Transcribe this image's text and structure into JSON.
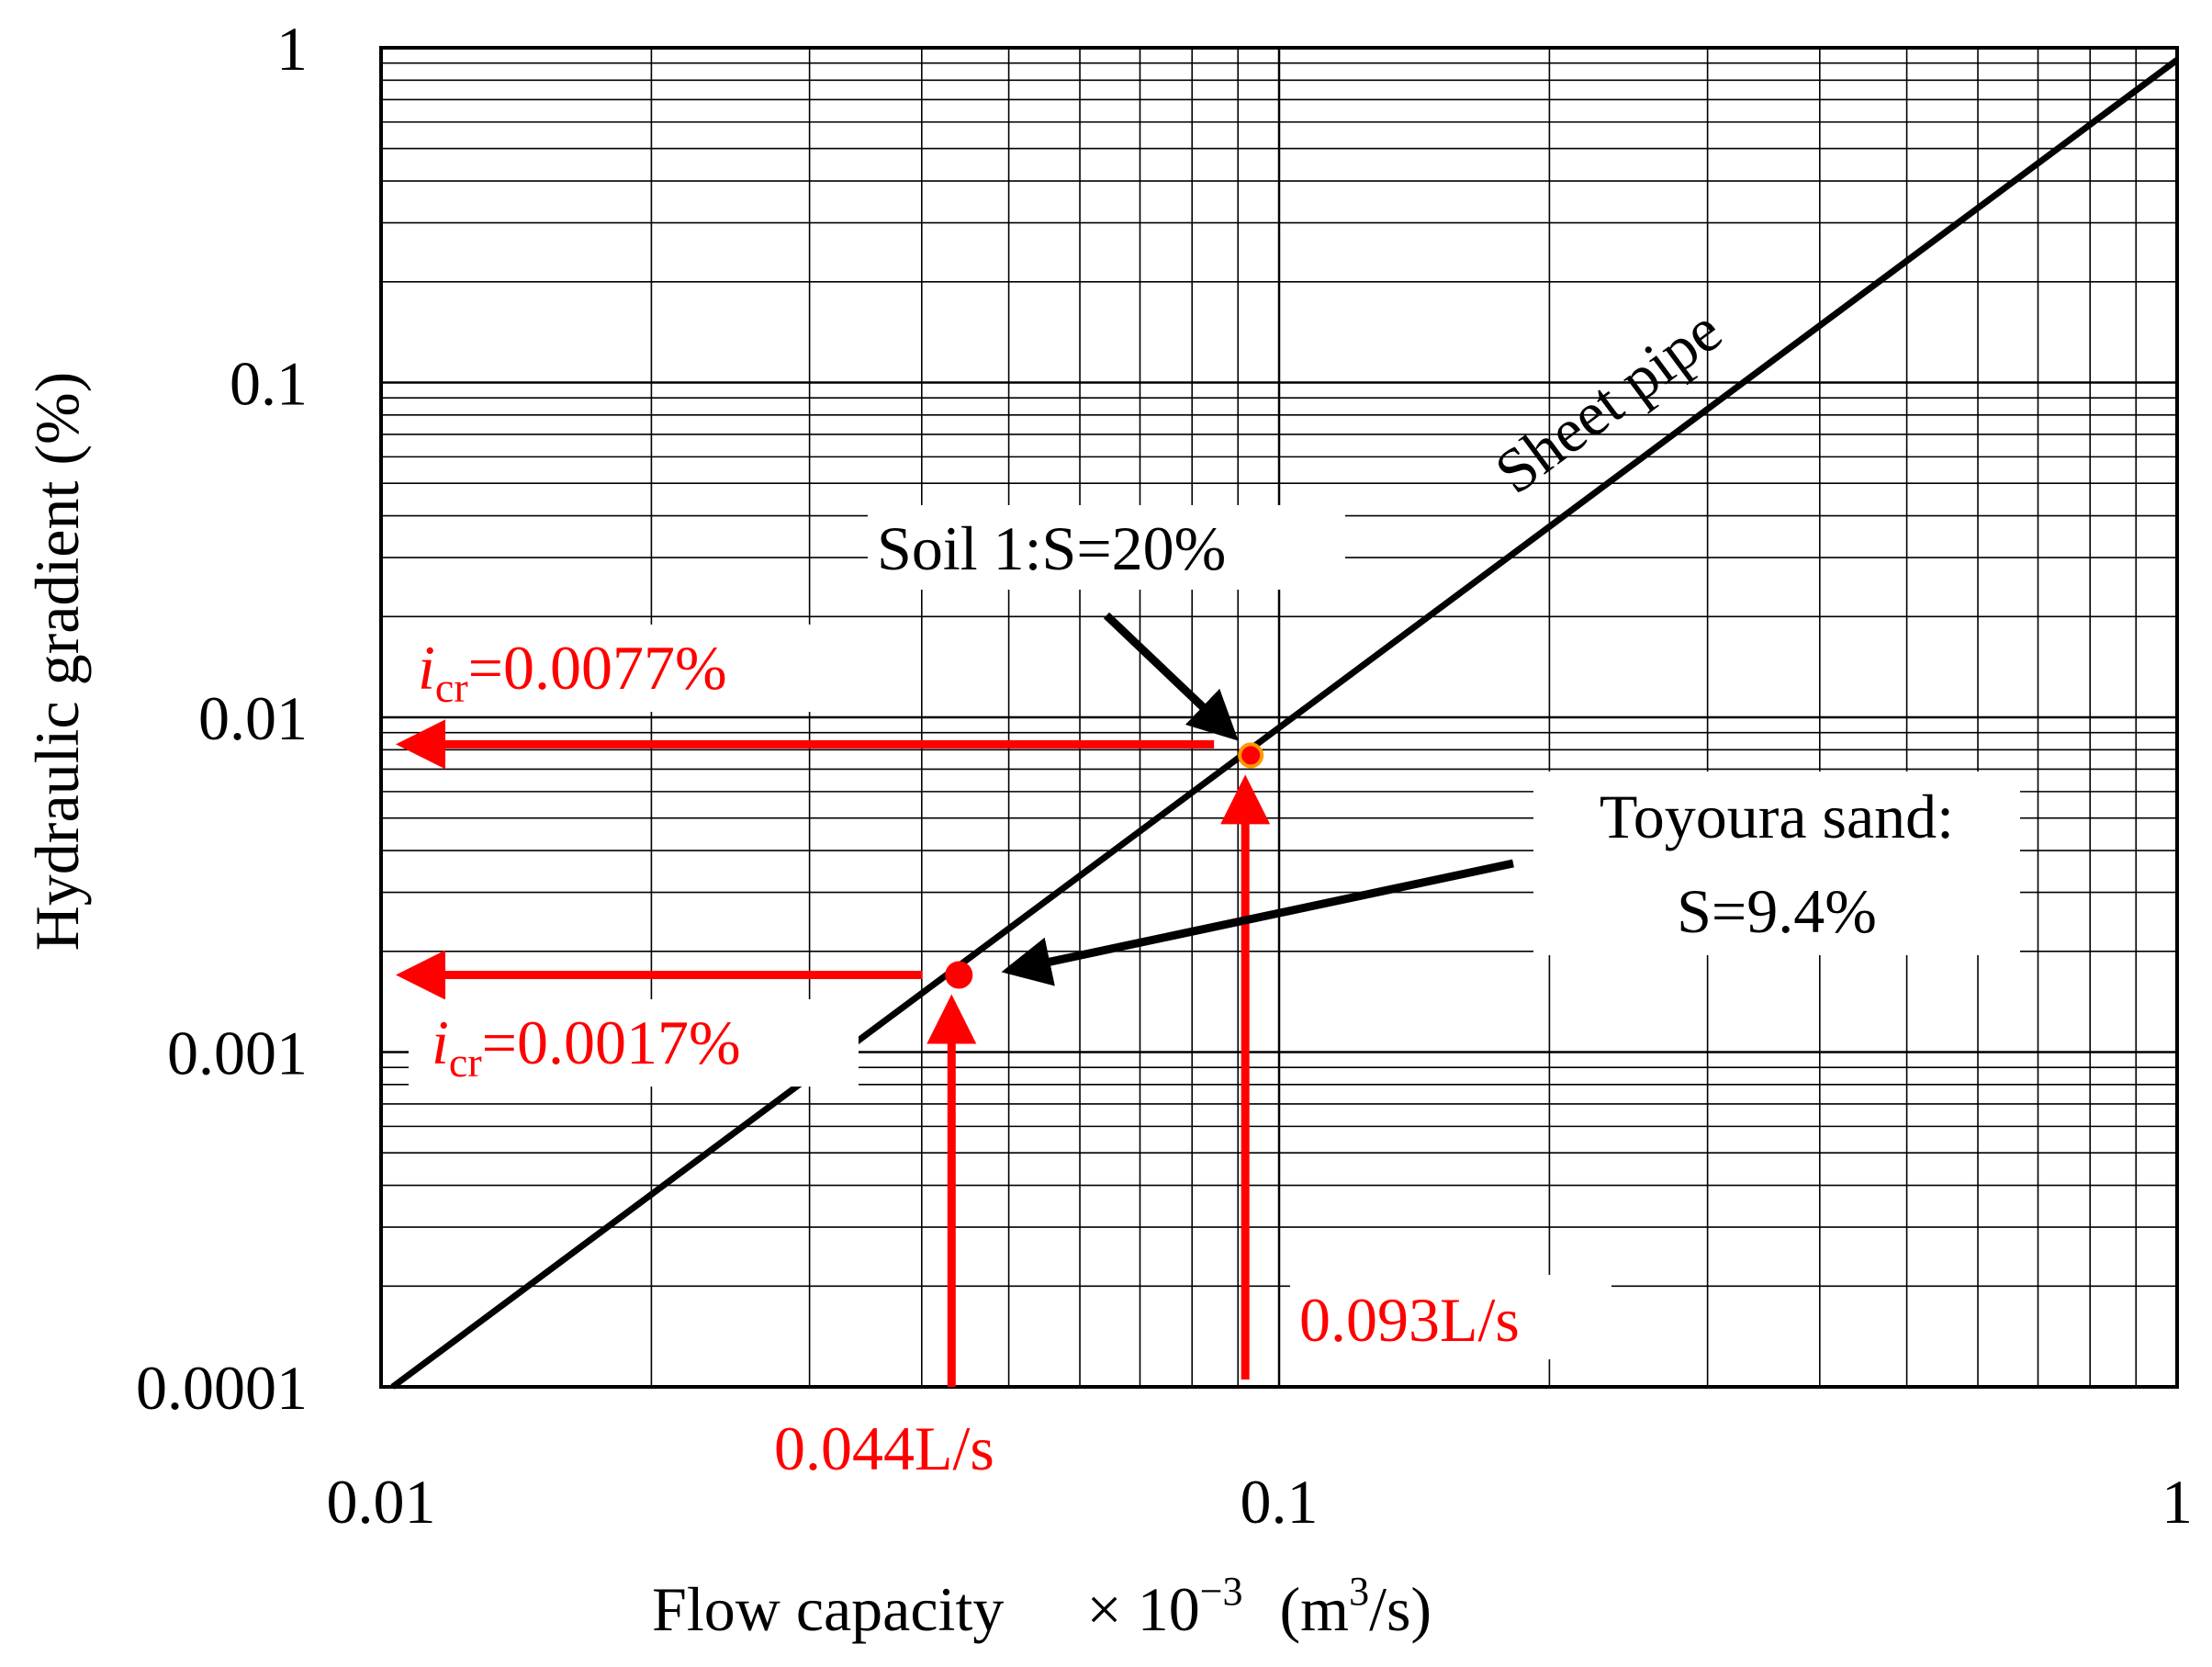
{
  "chart_data": {
    "type": "line",
    "x_scale": "log",
    "y_scale": "log",
    "xlim": [
      0.01,
      1
    ],
    "ylim": [
      0.0001,
      1
    ],
    "grid": true,
    "x_ticks": [
      "0.01",
      "0.1",
      "1"
    ],
    "y_ticks": [
      "0.0001",
      "0.001",
      "0.01",
      "0.1",
      "1"
    ],
    "xlabel": {
      "main": "Flow capacity",
      "factor_prefix": "× 10",
      "factor_exp": "−3",
      "unit_open": "(m",
      "unit_exp": "3",
      "unit_close": "/s)"
    },
    "ylabel": "Hydraulic gradient  (%)",
    "series": [
      {
        "name": "Sheet pipe",
        "color": "#000000",
        "x": [
          0.0103,
          1.0
        ],
        "y": [
          0.0001,
          0.92
        ]
      }
    ],
    "points": [
      {
        "name": "Soil 1:S=20%",
        "x": 0.093,
        "y": 0.0077,
        "color": "#ff0000",
        "edge": "#ff9900"
      },
      {
        "name": "Toyoura sand",
        "x": 0.044,
        "y": 0.0017,
        "color": "#ff0000",
        "edge": "#ff0000"
      }
    ],
    "annotations": {
      "line_label": "Sheet pipe",
      "soil1_label": "Soil 1:S=20%",
      "toyoura_label_1": "Toyoura sand:",
      "toyoura_label_2": "S=9.4%",
      "icr_symbol": "i",
      "icr_sub": "cr",
      "icr_soil1_value": "=0.0077%",
      "icr_toyoura_value": "=0.0017%",
      "flow_soil1": "0.093L/s",
      "flow_toyoura": "0.044L/s"
    },
    "colors": {
      "highlight": "#ff0000",
      "line": "#000000",
      "grid": "#000000"
    }
  }
}
